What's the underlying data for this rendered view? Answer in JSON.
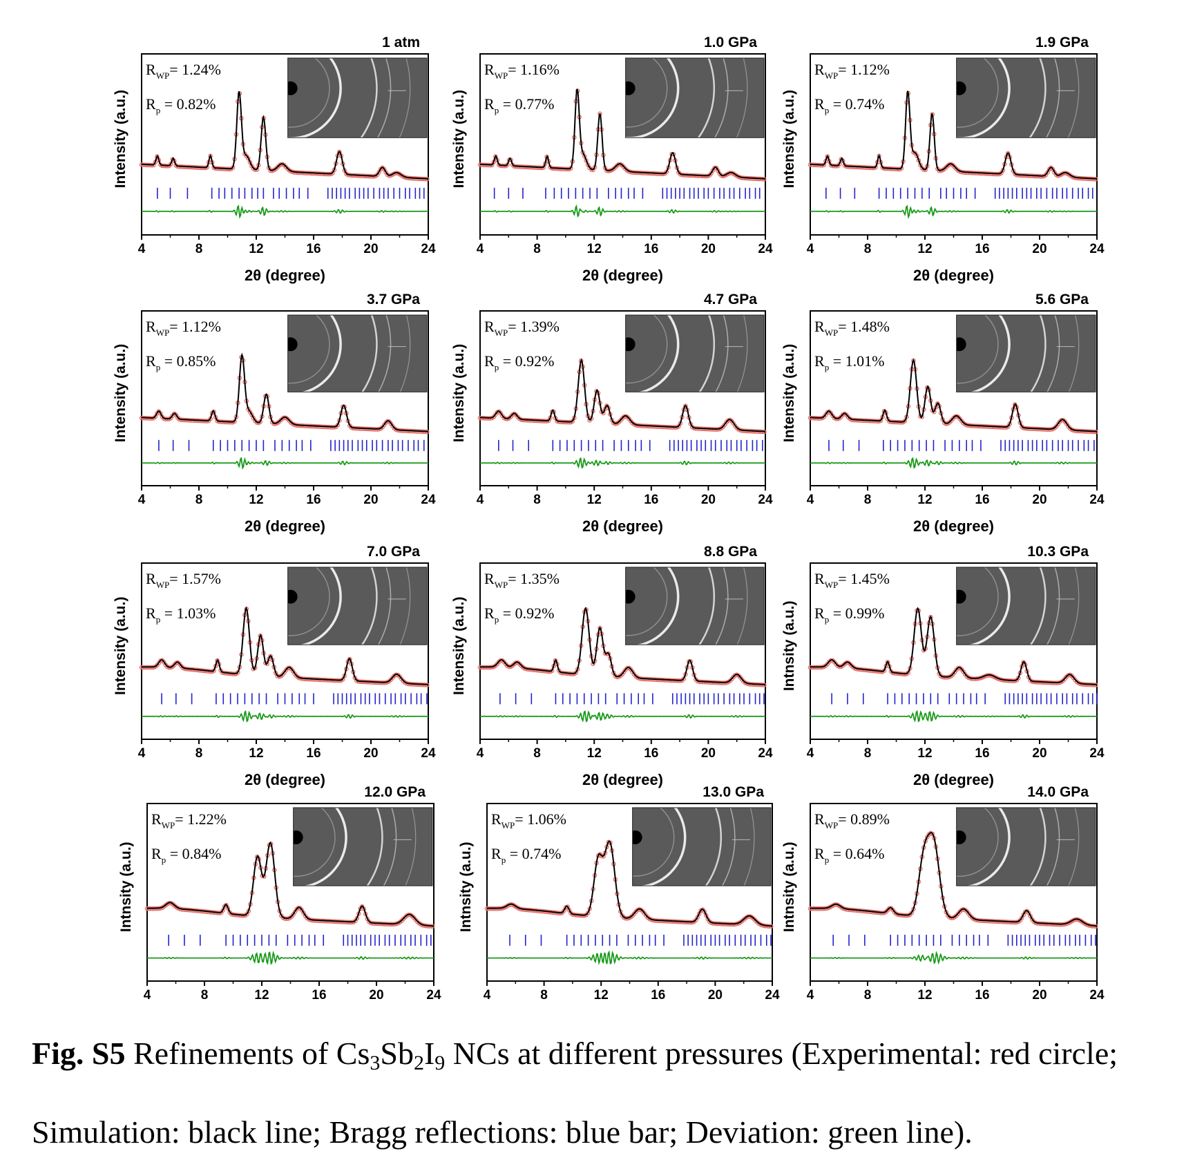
{
  "figure": {
    "caption_label": "Fig. S5",
    "caption_pre": "Refinements of Cs",
    "caption_sub1": "3",
    "caption_mid1": "Sb",
    "caption_sub2": "2",
    "caption_mid2": "I",
    "caption_sub3": "9",
    "caption_post": "NCs at different pressures (Experimental: red circle;",
    "caption_line2": "Simulation: black line; Bragg reflections: blue bar; Deviation: green line)."
  },
  "colors": {
    "experimental": "#e8706a",
    "simulation": "#000000",
    "bragg": "#2222cc",
    "deviation": "#1a9a1a"
  },
  "chart_data": [
    {
      "type": "line",
      "title": "1 atm",
      "xlabel": "2θ (degree)",
      "ylabel": "Intensity (a.u.)",
      "xlim": [
        4,
        24
      ],
      "xticks": [
        4,
        8,
        12,
        16,
        20,
        24
      ],
      "rwp": "1.24%",
      "rp": "0.82%",
      "peaks": [
        [
          5.1,
          0.12,
          0.1
        ],
        [
          6.2,
          0.1,
          0.1
        ],
        [
          8.8,
          0.16,
          0.1
        ],
        [
          10.8,
          1.0,
          0.16
        ],
        [
          11.3,
          0.18,
          0.25
        ],
        [
          12.5,
          0.7,
          0.16
        ],
        [
          13.8,
          0.1,
          0.3
        ],
        [
          17.8,
          0.3,
          0.2
        ],
        [
          20.8,
          0.12,
          0.2
        ],
        [
          21.8,
          0.06,
          0.3
        ]
      ],
      "bragg": [
        5.1,
        6.0,
        7.2,
        8.9,
        9.4,
        9.8,
        10.3,
        10.8,
        11.2,
        11.7,
        12.1,
        12.5,
        13.2,
        13.6,
        14.1,
        14.6,
        15.0,
        15.6,
        17.0,
        17.3,
        17.6,
        17.9,
        18.2,
        18.5,
        18.9,
        19.2,
        19.5,
        19.8,
        20.2,
        20.6,
        20.9,
        21.2,
        21.6,
        22.0,
        22.4,
        22.7,
        23.1,
        23.4,
        23.7
      ]
    },
    {
      "type": "line",
      "title": "1.0 GPa",
      "xlabel": "2θ (degree)",
      "ylabel": "Intensity (a.u.)",
      "xlim": [
        4,
        24
      ],
      "xticks": [
        4,
        8,
        12,
        16,
        20,
        24
      ],
      "rwp": "1.16%",
      "rp": "0.77%",
      "peaks": [
        [
          5.1,
          0.12,
          0.1
        ],
        [
          6.1,
          0.1,
          0.1
        ],
        [
          8.7,
          0.15,
          0.1
        ],
        [
          10.8,
          1.0,
          0.15
        ],
        [
          11.2,
          0.2,
          0.25
        ],
        [
          12.4,
          0.75,
          0.15
        ],
        [
          13.8,
          0.1,
          0.3
        ],
        [
          17.5,
          0.28,
          0.2
        ],
        [
          20.5,
          0.12,
          0.2
        ],
        [
          21.6,
          0.06,
          0.3
        ]
      ],
      "bragg": [
        5.0,
        6.0,
        7.0,
        8.6,
        9.2,
        9.7,
        10.2,
        10.7,
        11.2,
        11.7,
        12.2,
        13.0,
        13.5,
        13.9,
        14.4,
        14.8,
        15.4,
        16.8,
        17.1,
        17.4,
        17.7,
        18.0,
        18.3,
        18.7,
        19.0,
        19.3,
        19.7,
        20.0,
        20.4,
        20.8,
        21.1,
        21.5,
        21.8,
        22.2,
        22.6,
        22.9,
        23.3,
        23.6
      ]
    },
    {
      "type": "line",
      "title": "1.9 GPa",
      "xlabel": "2θ (degree)",
      "ylabel": "Intensity (a.u.)",
      "xlim": [
        4,
        24
      ],
      "xticks": [
        4,
        8,
        12,
        16,
        20,
        24
      ],
      "rwp": "1.12%",
      "rp": "0.74%",
      "peaks": [
        [
          5.2,
          0.12,
          0.1
        ],
        [
          6.2,
          0.1,
          0.1
        ],
        [
          8.8,
          0.16,
          0.1
        ],
        [
          10.8,
          1.0,
          0.15
        ],
        [
          11.3,
          0.22,
          0.25
        ],
        [
          12.5,
          0.75,
          0.15
        ],
        [
          13.8,
          0.1,
          0.3
        ],
        [
          17.8,
          0.28,
          0.2
        ],
        [
          20.8,
          0.12,
          0.2
        ],
        [
          21.8,
          0.06,
          0.3
        ]
      ],
      "bragg": [
        5.1,
        6.1,
        7.1,
        8.8,
        9.3,
        9.8,
        10.3,
        10.8,
        11.3,
        11.8,
        12.3,
        13.1,
        13.5,
        14.0,
        14.5,
        14.9,
        15.5,
        16.9,
        17.2,
        17.5,
        17.8,
        18.1,
        18.4,
        18.8,
        19.1,
        19.4,
        19.8,
        20.1,
        20.5,
        20.9,
        21.2,
        21.6,
        21.9,
        22.3,
        22.7,
        23.0,
        23.4,
        23.7
      ]
    },
    {
      "type": "line",
      "title": "3.7 GPa",
      "xlabel": "2θ (degree)",
      "ylabel": "Intensity (a.u.)",
      "xlim": [
        4,
        24
      ],
      "xticks": [
        4,
        8,
        12,
        16,
        20,
        24
      ],
      "rwp": "1.12%",
      "rp": "0.85%",
      "peaks": [
        [
          5.2,
          0.1,
          0.15
        ],
        [
          6.3,
          0.08,
          0.15
        ],
        [
          9.0,
          0.14,
          0.12
        ],
        [
          11.0,
          0.9,
          0.18
        ],
        [
          11.5,
          0.15,
          0.25
        ],
        [
          12.7,
          0.4,
          0.18
        ],
        [
          14.0,
          0.1,
          0.3
        ],
        [
          18.1,
          0.3,
          0.2
        ],
        [
          21.2,
          0.12,
          0.25
        ]
      ],
      "bragg": [
        5.2,
        6.2,
        7.3,
        9.0,
        9.5,
        10.0,
        10.5,
        11.0,
        11.5,
        12.0,
        12.5,
        13.3,
        13.8,
        14.3,
        14.8,
        15.2,
        15.8,
        17.2,
        17.5,
        17.8,
        18.1,
        18.4,
        18.7,
        19.1,
        19.4,
        19.7,
        20.1,
        20.4,
        20.8,
        21.2,
        21.5,
        21.9,
        22.2,
        22.6,
        23.0,
        23.3,
        23.7
      ]
    },
    {
      "type": "line",
      "title": "4.7 GPa",
      "xlabel": "2θ (degree)",
      "ylabel": "Intensity (a.u.)",
      "xlim": [
        4,
        24
      ],
      "xticks": [
        4,
        8,
        12,
        16,
        20,
        24
      ],
      "rwp": "1.39%",
      "rp": "0.92%",
      "peaks": [
        [
          5.3,
          0.1,
          0.2
        ],
        [
          6.4,
          0.08,
          0.2
        ],
        [
          9.1,
          0.15,
          0.12
        ],
        [
          11.1,
          0.85,
          0.22
        ],
        [
          12.2,
          0.45,
          0.2
        ],
        [
          12.9,
          0.25,
          0.2
        ],
        [
          14.2,
          0.12,
          0.3
        ],
        [
          18.4,
          0.3,
          0.2
        ],
        [
          21.5,
          0.14,
          0.3
        ]
      ],
      "bragg": [
        5.3,
        6.3,
        7.4,
        9.1,
        9.6,
        10.1,
        10.6,
        11.1,
        11.6,
        12.1,
        12.6,
        13.4,
        13.9,
        14.4,
        14.9,
        15.3,
        15.9,
        17.3,
        17.6,
        17.9,
        18.2,
        18.5,
        18.8,
        19.2,
        19.5,
        19.8,
        20.2,
        20.5,
        20.9,
        21.3,
        21.6,
        22.0,
        22.3,
        22.7,
        23.1,
        23.4,
        23.8
      ]
    },
    {
      "type": "line",
      "title": "5.6 GPa",
      "xlabel": "2θ (degree)",
      "ylabel": "Intensity (a.u.)",
      "xlim": [
        4,
        24
      ],
      "xticks": [
        4,
        8,
        12,
        16,
        20,
        24
      ],
      "rwp": "1.48%",
      "rp": "1.01%",
      "peaks": [
        [
          5.3,
          0.1,
          0.2
        ],
        [
          6.4,
          0.08,
          0.2
        ],
        [
          9.2,
          0.15,
          0.12
        ],
        [
          11.2,
          0.85,
          0.22
        ],
        [
          12.2,
          0.5,
          0.2
        ],
        [
          12.9,
          0.28,
          0.2
        ],
        [
          14.2,
          0.12,
          0.3
        ],
        [
          18.3,
          0.32,
          0.2
        ],
        [
          21.6,
          0.14,
          0.3
        ]
      ],
      "bragg": [
        5.3,
        6.3,
        7.4,
        9.1,
        9.6,
        10.1,
        10.6,
        11.1,
        11.6,
        12.1,
        12.6,
        13.4,
        13.9,
        14.4,
        14.9,
        15.3,
        15.9,
        17.3,
        17.6,
        17.9,
        18.2,
        18.5,
        18.8,
        19.2,
        19.5,
        19.8,
        20.2,
        20.5,
        20.9,
        21.3,
        21.6,
        22.0,
        22.3,
        22.7,
        23.1,
        23.4,
        23.8
      ]
    },
    {
      "type": "line",
      "title": "7.0 GPa",
      "xlabel": "2θ (degree)",
      "ylabel": "Intensity (a.u.)",
      "xlim": [
        4,
        24
      ],
      "xticks": [
        4,
        8,
        12,
        16,
        20,
        24
      ],
      "rwp": "1.57%",
      "rp": "1.03%",
      "peaks": [
        [
          5.4,
          0.1,
          0.2
        ],
        [
          6.5,
          0.08,
          0.2
        ],
        [
          9.3,
          0.16,
          0.12
        ],
        [
          11.3,
          0.9,
          0.22
        ],
        [
          12.3,
          0.55,
          0.2
        ],
        [
          13.0,
          0.28,
          0.2
        ],
        [
          14.3,
          0.14,
          0.3
        ],
        [
          18.5,
          0.3,
          0.2
        ],
        [
          21.8,
          0.12,
          0.3
        ]
      ],
      "bragg": [
        5.4,
        6.4,
        7.5,
        9.2,
        9.7,
        10.2,
        10.7,
        11.2,
        11.7,
        12.2,
        12.7,
        13.5,
        14.0,
        14.5,
        15.0,
        15.4,
        16.0,
        17.4,
        17.7,
        18.0,
        18.3,
        18.6,
        18.9,
        19.3,
        19.6,
        19.9,
        20.3,
        20.6,
        21.0,
        21.4,
        21.7,
        22.1,
        22.4,
        22.8,
        23.2,
        23.5,
        23.9
      ]
    },
    {
      "type": "line",
      "title": "8.8 GPa",
      "xlabel": "2θ (degree)",
      "ylabel": "Intensity (a.u.)",
      "xlim": [
        4,
        24
      ],
      "xticks": [
        4,
        8,
        12,
        16,
        20,
        24
      ],
      "rwp": "1.35%",
      "rp": "0.92%",
      "peaks": [
        [
          5.5,
          0.1,
          0.25
        ],
        [
          6.6,
          0.08,
          0.25
        ],
        [
          9.3,
          0.16,
          0.12
        ],
        [
          11.4,
          0.9,
          0.25
        ],
        [
          12.4,
          0.65,
          0.22
        ],
        [
          13.0,
          0.3,
          0.2
        ],
        [
          14.4,
          0.14,
          0.3
        ],
        [
          18.7,
          0.28,
          0.2
        ],
        [
          22.0,
          0.12,
          0.3
        ]
      ],
      "bragg": [
        5.4,
        6.5,
        7.6,
        9.3,
        9.8,
        10.3,
        10.8,
        11.3,
        11.8,
        12.3,
        12.8,
        13.6,
        14.1,
        14.6,
        15.1,
        15.5,
        16.1,
        17.5,
        17.8,
        18.1,
        18.4,
        18.7,
        19.0,
        19.4,
        19.7,
        20.0,
        20.4,
        20.7,
        21.1,
        21.5,
        21.8,
        22.2,
        22.5,
        22.9,
        23.3,
        23.6,
        23.9
      ]
    },
    {
      "type": "line",
      "title": "10.3 GPa",
      "xlabel": "2θ (degree)",
      "ylabel": "Intnsity (a.u.)",
      "xlim": [
        4,
        24
      ],
      "xticks": [
        4,
        8,
        12,
        16,
        20,
        24
      ],
      "rwp": "1.45%",
      "rp": "0.99%",
      "peaks": [
        [
          5.5,
          0.1,
          0.25
        ],
        [
          6.6,
          0.08,
          0.25
        ],
        [
          9.4,
          0.14,
          0.12
        ],
        [
          11.5,
          0.9,
          0.25
        ],
        [
          12.4,
          0.8,
          0.25
        ],
        [
          14.4,
          0.14,
          0.3
        ],
        [
          16.5,
          0.06,
          0.4
        ],
        [
          18.9,
          0.26,
          0.2
        ],
        [
          22.1,
          0.12,
          0.3
        ]
      ],
      "bragg": [
        5.5,
        6.6,
        7.7,
        9.4,
        9.9,
        10.4,
        10.9,
        11.4,
        11.9,
        12.4,
        12.9,
        13.7,
        14.2,
        14.7,
        15.2,
        15.6,
        16.2,
        17.6,
        17.9,
        18.2,
        18.5,
        18.8,
        19.1,
        19.5,
        19.8,
        20.1,
        20.5,
        20.8,
        21.2,
        21.6,
        21.9,
        22.3,
        22.6,
        23.0,
        23.4,
        23.7,
        24.0
      ]
    },
    {
      "type": "line",
      "title": "12.0 GPa",
      "xlabel": "",
      "ylabel": "Intnsity (a.u.)",
      "xlim": [
        4,
        24
      ],
      "xticks": [
        4,
        8,
        12,
        16,
        20,
        24
      ],
      "rwp": "1.22%",
      "rp": "0.84%",
      "peaks": [
        [
          5.6,
          0.08,
          0.3
        ],
        [
          9.5,
          0.12,
          0.15
        ],
        [
          11.7,
          0.8,
          0.28
        ],
        [
          12.6,
          1.0,
          0.3
        ],
        [
          14.6,
          0.16,
          0.3
        ],
        [
          19.0,
          0.22,
          0.22
        ],
        [
          22.3,
          0.14,
          0.4
        ]
      ],
      "bragg": [
        5.5,
        6.6,
        7.7,
        9.5,
        10.0,
        10.5,
        11.0,
        11.5,
        12.0,
        12.5,
        13.0,
        13.8,
        14.3,
        14.8,
        15.3,
        15.7,
        16.3,
        17.7,
        18.0,
        18.3,
        18.6,
        18.9,
        19.2,
        19.6,
        19.9,
        20.2,
        20.6,
        20.9,
        21.3,
        21.7,
        22.0,
        22.4,
        22.7,
        23.1,
        23.5,
        23.8
      ]
    },
    {
      "type": "line",
      "title": "13.0 GPa",
      "xlabel": "",
      "ylabel": "Intnsity (a.u.)",
      "xlim": [
        4,
        24
      ],
      "xticks": [
        4,
        8,
        12,
        16,
        20,
        24
      ],
      "rwp": "1.06%",
      "rp": "0.74%",
      "peaks": [
        [
          5.7,
          0.06,
          0.3
        ],
        [
          9.6,
          0.1,
          0.15
        ],
        [
          11.8,
          0.75,
          0.3
        ],
        [
          12.6,
          1.0,
          0.35
        ],
        [
          14.7,
          0.14,
          0.35
        ],
        [
          19.1,
          0.18,
          0.25
        ],
        [
          22.4,
          0.12,
          0.4
        ]
      ],
      "bragg": [
        5.6,
        6.7,
        7.8,
        9.6,
        10.1,
        10.6,
        11.1,
        11.6,
        12.1,
        12.6,
        13.1,
        13.9,
        14.4,
        14.9,
        15.4,
        15.8,
        16.4,
        17.8,
        18.1,
        18.4,
        18.7,
        19.0,
        19.3,
        19.7,
        20.0,
        20.3,
        20.7,
        21.0,
        21.4,
        21.8,
        22.1,
        22.5,
        22.8,
        23.2,
        23.6,
        23.9
      ]
    },
    {
      "type": "line",
      "title": "14.0 GPa",
      "xlabel": "",
      "ylabel": "Intnsity (a.u.)",
      "xlim": [
        4,
        24
      ],
      "xticks": [
        4,
        8,
        12,
        16,
        20,
        24
      ],
      "rwp": "0.89%",
      "rp": "0.64%",
      "peaks": [
        [
          5.8,
          0.06,
          0.3
        ],
        [
          9.6,
          0.08,
          0.2
        ],
        [
          11.9,
          0.7,
          0.35
        ],
        [
          12.6,
          1.0,
          0.4
        ],
        [
          14.7,
          0.14,
          0.35
        ],
        [
          19.1,
          0.16,
          0.25
        ],
        [
          22.6,
          0.08,
          0.4
        ]
      ],
      "bragg": [
        5.6,
        6.7,
        7.8,
        9.6,
        10.1,
        10.6,
        11.1,
        11.6,
        12.1,
        12.6,
        13.1,
        13.9,
        14.4,
        14.9,
        15.4,
        15.8,
        16.4,
        17.8,
        18.1,
        18.4,
        18.7,
        19.0,
        19.3,
        19.7,
        20.0,
        20.3,
        20.7,
        21.0,
        21.4,
        21.8,
        22.1,
        22.5,
        22.8,
        23.2,
        23.6,
        23.9
      ]
    }
  ]
}
